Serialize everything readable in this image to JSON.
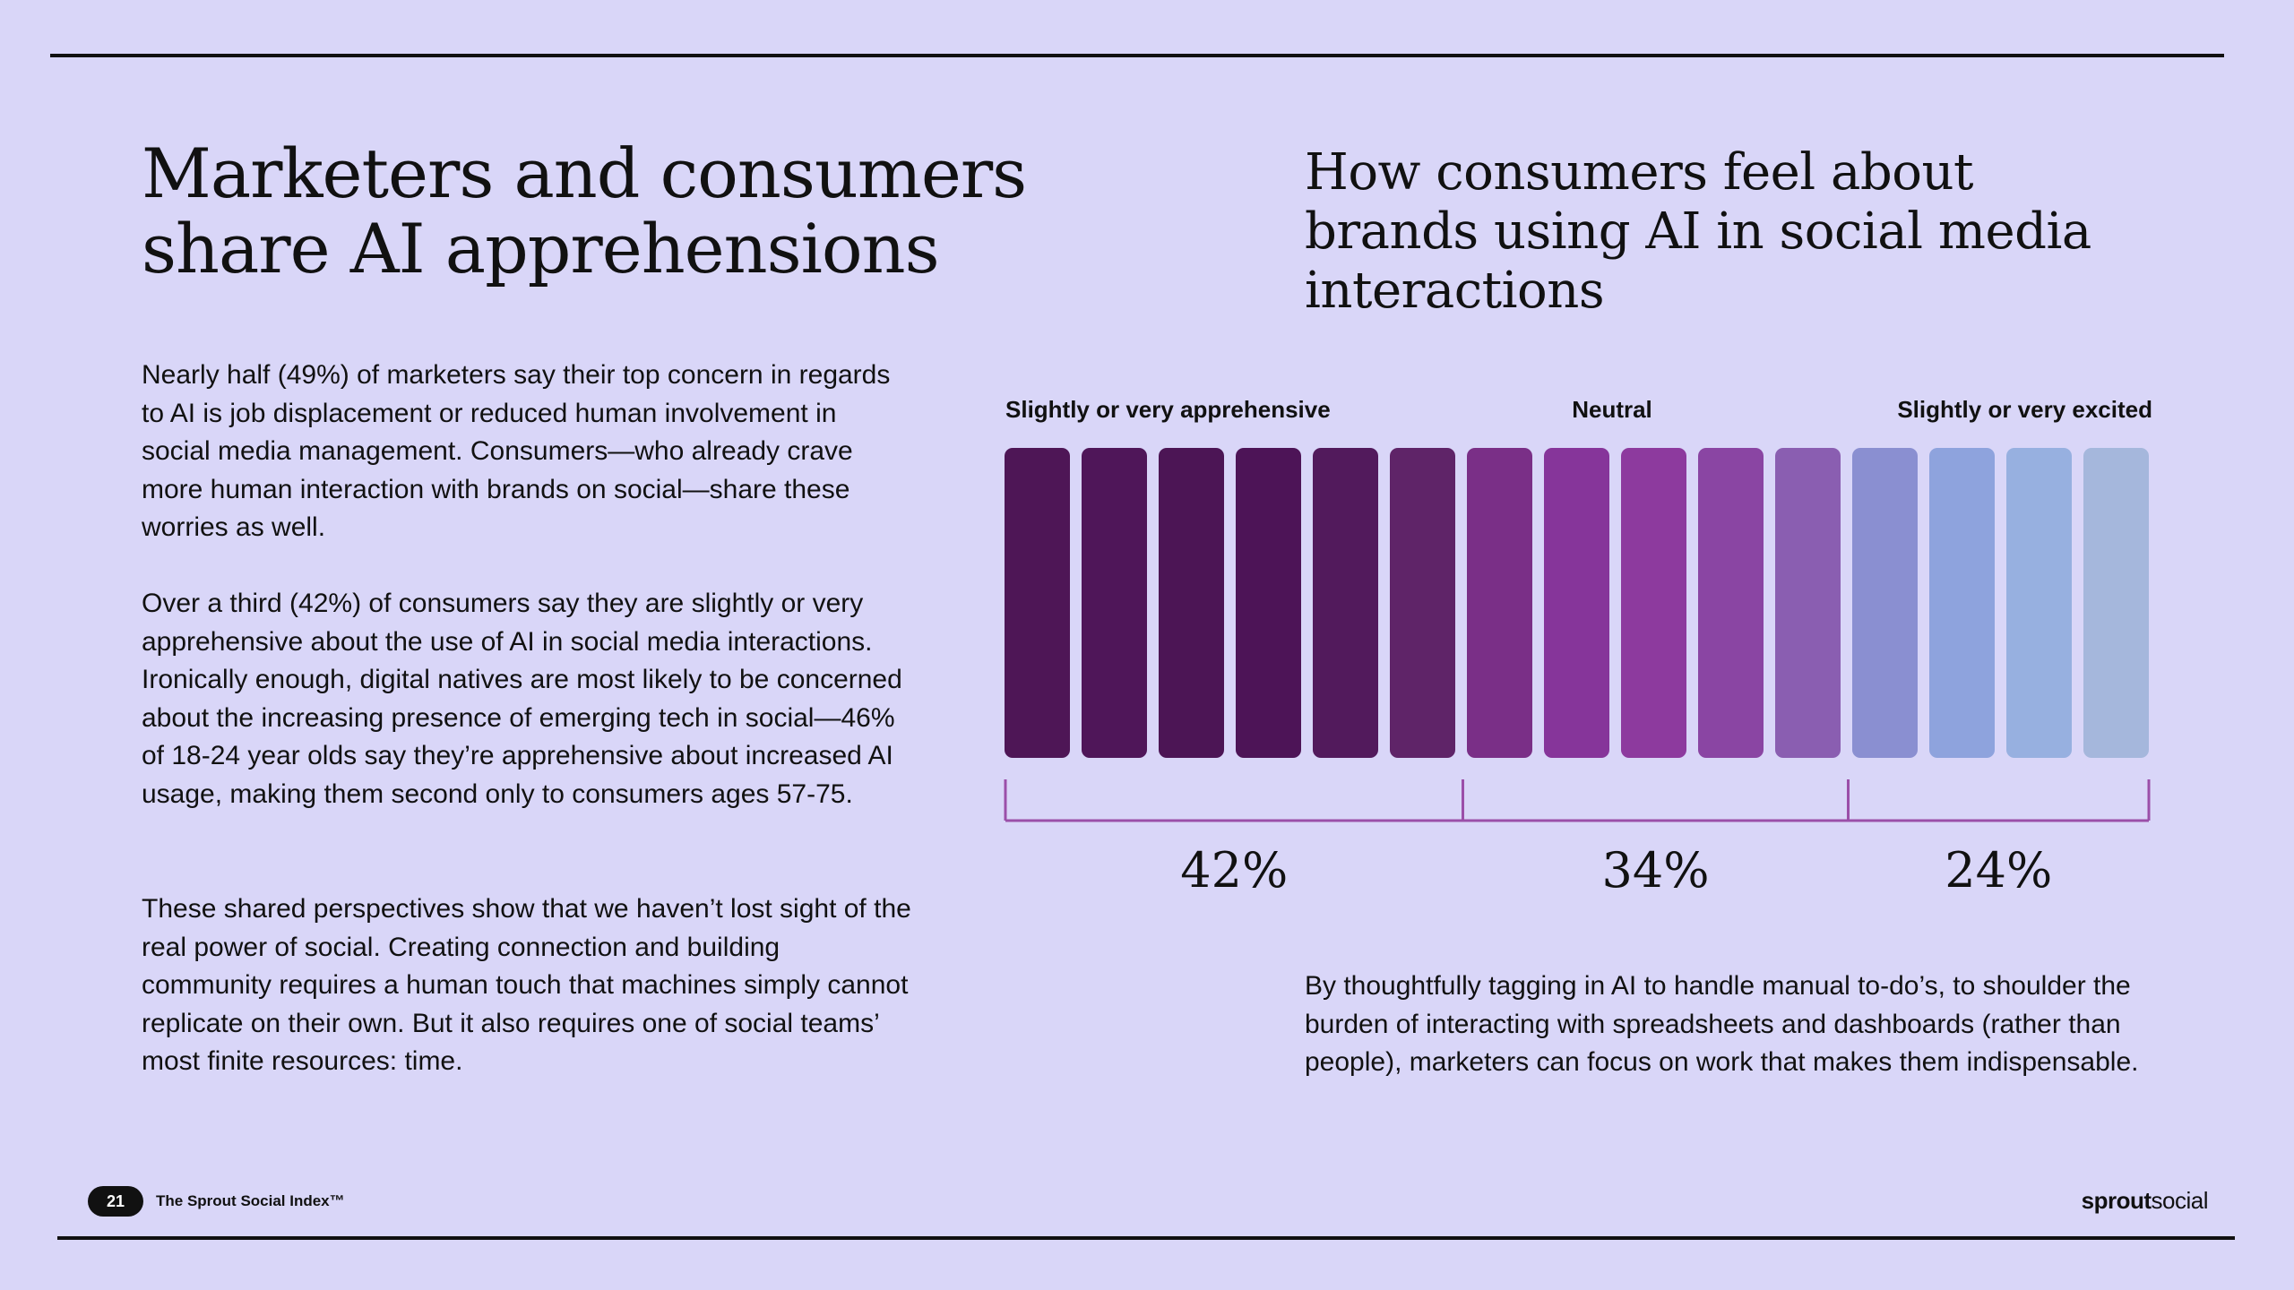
{
  "page": {
    "title": "Marketers and consumers share AI apprehensions",
    "paragraphs": [
      "Nearly half (49%) of marketers say their top concern in regards to AI is job displacement or reduced human involvement in social media management. Consumers—who already crave more human interaction with brands on social—share these worries as well.",
      "Over a third (42%) of consumers say they are slightly or very apprehensive about the use of AI in social media interactions. Ironically enough, digital natives are most likely to be concerned about the increasing presence of emerging tech in social—46% of 18-24 year olds say they’re apprehensive about increased AI usage, making them second only to consumers ages 57-75.",
      "These shared perspectives show that we haven’t lost sight of the real power of social. Creating connection and building community requires a human touch that machines simply cannot replicate on their own. But it also requires one of social teams’ most finite resources: time."
    ],
    "closing": "By thoughtfully tagging in AI to handle manual to-do’s, to shoulder the burden of interacting with spreadsheets and dashboards (rather than people), marketers can focus on work that makes them indispensable."
  },
  "footer": {
    "page_number": "21",
    "publication": "The Sprout Social Index™",
    "logo_bold": "sprout",
    "logo_regular": "social"
  },
  "chart_data": {
    "type": "bar",
    "title": "How consumers feel about brands using AI in social media interactions",
    "categories": [
      "Slightly or very apprehensive",
      "Neutral",
      "Slightly or very excited"
    ],
    "values": [
      42,
      34,
      24
    ],
    "value_labels": [
      "42%",
      "34%",
      "24%"
    ],
    "unit": "%",
    "bar_segments": [
      6,
      5,
      4
    ],
    "colors": {
      "bars": [
        "#4e1656",
        "#4f1659",
        "#4c1555",
        "#4d1457",
        "#521a5c",
        "#5f2468",
        "#7a2f87",
        "#86359a",
        "#8d3a9e",
        "#8a45a3",
        "#8a5eb1",
        "#8a8fd1",
        "#8ea3dd",
        "#97b0e0",
        "#a5b7dc"
      ],
      "bracket": "#9b4fa9"
    }
  }
}
